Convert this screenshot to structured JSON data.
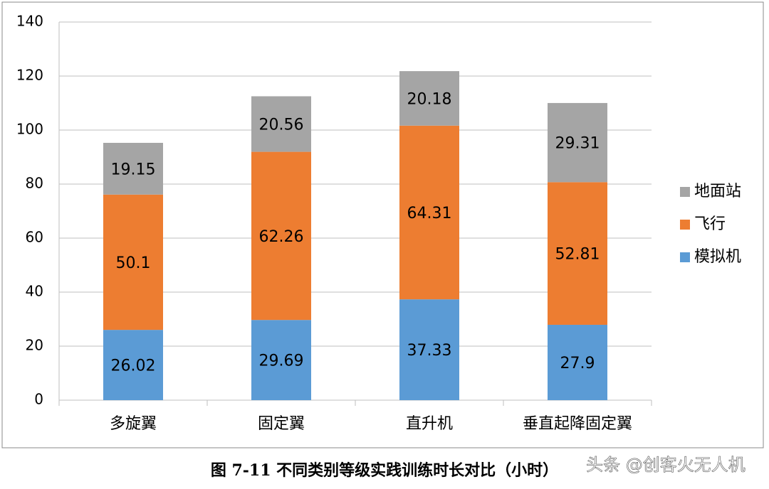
{
  "chart_data": {
    "type": "stacked_bar",
    "categories": [
      "多旋翼",
      "固定翼",
      "直升机",
      "垂直起降固定翼"
    ],
    "series": [
      {
        "name": "模拟机",
        "color": "#5b9bd5",
        "values": [
          26.02,
          29.69,
          37.33,
          27.9
        ]
      },
      {
        "name": "飞行",
        "color": "#ed7d31",
        "values": [
          50.1,
          62.26,
          64.31,
          52.81
        ]
      },
      {
        "name": "地面站",
        "color": "#a5a5a5",
        "values": [
          19.15,
          20.56,
          20.18,
          29.31
        ]
      }
    ],
    "ylim": [
      0,
      140
    ],
    "yticks": [
      0,
      20,
      40,
      60,
      80,
      100,
      120,
      140
    ],
    "grid": true,
    "legend": "right",
    "caption": "图 7-11  不同类别等级实践训练时长对比（小时）",
    "watermark": "头条 @创客火无人机"
  }
}
